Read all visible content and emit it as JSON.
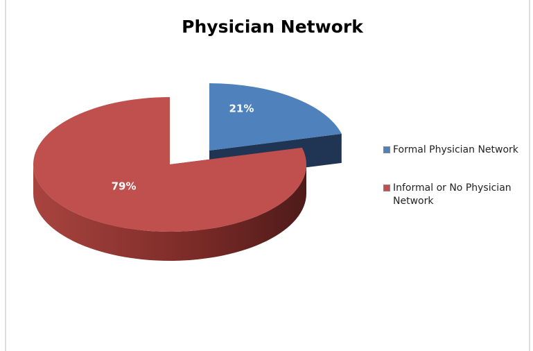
{
  "chart_data": {
    "type": "pie",
    "title": "Physician Network",
    "categories": [
      "Formal Physician Network",
      "Informal or No Physician Network"
    ],
    "values": [
      21,
      79
    ],
    "value_labels": [
      "21%",
      "79%"
    ],
    "colors": [
      "#4f81bd",
      "#c0504d"
    ],
    "legend": "right"
  }
}
